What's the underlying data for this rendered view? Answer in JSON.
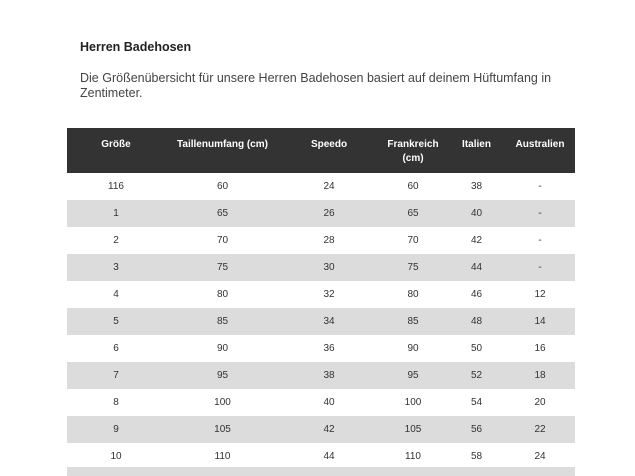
{
  "header": {
    "title": "Herren Badehosen",
    "description": "Die Größenübersicht für unsere Herren Badehosen basiert auf deinem Hüftumfang in Zentimeter."
  },
  "table": {
    "columns": [
      "Größe",
      "Taillenumfang (cm)",
      "Speedo",
      "Frankreich (cm)",
      "Italien",
      "Australien"
    ],
    "rows": [
      [
        "116",
        "60",
        "24",
        "60",
        "38",
        "-"
      ],
      [
        "1",
        "65",
        "26",
        "65",
        "40",
        "-"
      ],
      [
        "2",
        "70",
        "28",
        "70",
        "42",
        "-"
      ],
      [
        "3",
        "75",
        "30",
        "75",
        "44",
        "-"
      ],
      [
        "4",
        "80",
        "32",
        "80",
        "46",
        "12"
      ],
      [
        "5",
        "85",
        "34",
        "85",
        "48",
        "14"
      ],
      [
        "6",
        "90",
        "36",
        "90",
        "50",
        "16"
      ],
      [
        "7",
        "95",
        "38",
        "95",
        "52",
        "18"
      ],
      [
        "8",
        "100",
        "40",
        "100",
        "54",
        "20"
      ],
      [
        "9",
        "105",
        "42",
        "105",
        "56",
        "22"
      ],
      [
        "10",
        "110",
        "44",
        "110",
        "58",
        "24"
      ]
    ]
  }
}
